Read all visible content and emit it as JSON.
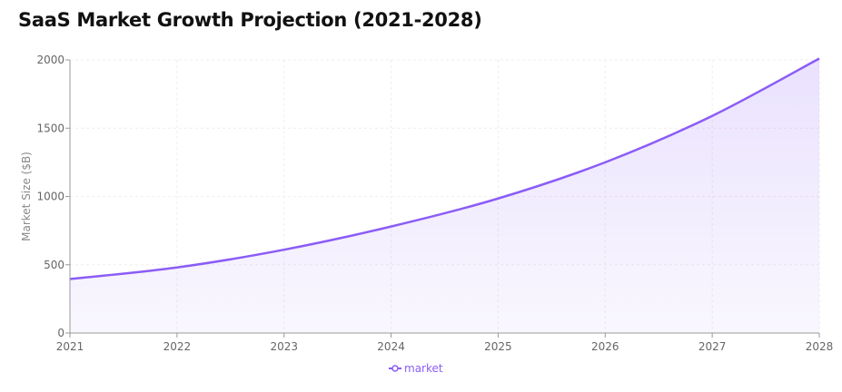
{
  "title": "SaaS Market Growth Projection (2021-2028)",
  "colors": {
    "series": "#8b5cf6",
    "fill": "#ede4fc",
    "grid": "#eeeeee",
    "axis": "#999999"
  },
  "chart_data": {
    "type": "area",
    "title": "SaaS Market Growth Projection (2021-2028)",
    "xlabel": "",
    "ylabel": "Market Size ($B)",
    "x": [
      "2021",
      "2022",
      "2023",
      "2024",
      "2025",
      "2026",
      "2027",
      "2028"
    ],
    "ylim": [
      0,
      2000
    ],
    "yticks": [
      0,
      500,
      1000,
      1500,
      2000
    ],
    "grid": true,
    "legend_position": "bottom-center",
    "series": [
      {
        "name": "market",
        "values": [
          395,
          480,
          610,
          780,
          985,
          1250,
          1590,
          2010
        ]
      }
    ]
  }
}
